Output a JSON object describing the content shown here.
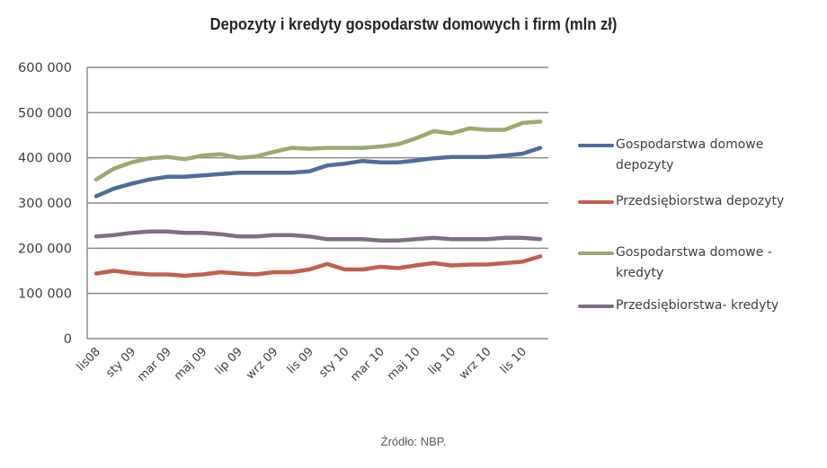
{
  "chart_data": {
    "type": "line",
    "title": "Depozyty i kredyty gospodarstw domowych i firm (mln zł)",
    "xlabel": "",
    "ylabel": "",
    "ylim": [
      0,
      600000
    ],
    "yticks": [
      0,
      100000,
      200000,
      300000,
      400000,
      500000,
      600000
    ],
    "ytick_labels": [
      "0",
      "100 000",
      "200 000",
      "300 000",
      "400 000",
      "500 000",
      "600 000"
    ],
    "grid": true,
    "legend_position": "right",
    "x": [
      "lis08",
      "gru 08",
      "sty 09",
      "lut 09",
      "mar 09",
      "kwi 09",
      "maj 09",
      "cze 09",
      "lip 09",
      "sie 09",
      "wrz 09",
      "paź 09",
      "lis 09",
      "gru 09",
      "sty 10",
      "lut 10",
      "mar 10",
      "kwi 10",
      "maj 10",
      "cze 10",
      "lip 10",
      "sie 10",
      "wrz 10",
      "paź 10",
      "lis 10",
      "gru 10"
    ],
    "xtick_labels": [
      "lis08",
      "sty 09",
      "mar 09",
      "maj 09",
      "lip 09",
      "wrz 09",
      "lis 09",
      "sty 10",
      "mar 10",
      "maj 10",
      "lip 10",
      "wrz 10",
      "lis 10"
    ],
    "series": [
      {
        "name": "Gospodarstwa domowe depozyty",
        "color": "#4f6d99",
        "values": [
          315000,
          332000,
          343000,
          352000,
          358000,
          358000,
          361000,
          364000,
          367000,
          367000,
          367000,
          367000,
          370000,
          383000,
          387000,
          393000,
          390000,
          390000,
          394000,
          399000,
          402000,
          402000,
          402000,
          405000,
          409000,
          422000
        ]
      },
      {
        "name": "Przedsiębiorstwa depozyty",
        "color": "#c0614f",
        "values": [
          144000,
          150000,
          145000,
          142000,
          142000,
          139000,
          142000,
          147000,
          144000,
          142000,
          147000,
          147000,
          153000,
          165000,
          153000,
          153000,
          159000,
          156000,
          162000,
          167000,
          162000,
          164000,
          164000,
          167000,
          170000,
          182000
        ]
      },
      {
        "name": "Gospodarstwa domowe - kredyty",
        "color": "#9aaa70",
        "values": [
          352000,
          376000,
          390000,
          399000,
          402000,
          397000,
          405000,
          408000,
          400000,
          403000,
          413000,
          422000,
          420000,
          422000,
          422000,
          422000,
          425000,
          430000,
          443000,
          459000,
          454000,
          465000,
          462000,
          462000,
          477000,
          480000
        ]
      },
      {
        "name": "Przedsiębiorstwa- kredyty",
        "color": "#806e82",
        "values": [
          226000,
          229000,
          234000,
          237000,
          237000,
          234000,
          234000,
          231000,
          226000,
          226000,
          229000,
          229000,
          226000,
          220000,
          220000,
          220000,
          217000,
          217000,
          220000,
          223000,
          220000,
          220000,
          220000,
          223000,
          223000,
          220000
        ]
      }
    ]
  },
  "legend": [
    {
      "label": "Gospodarstwa domowe depozyty",
      "color": "#4f6d99"
    },
    {
      "label": "Przedsiębiorstwa depozyty",
      "color": "#c0614f"
    },
    {
      "label": "Gospodarstwa domowe - kredyty",
      "color": "#9aaa70"
    },
    {
      "label": "Przedsiębiorstwa- kredyty",
      "color": "#806e82"
    }
  ],
  "source": "Źródło: NBP."
}
